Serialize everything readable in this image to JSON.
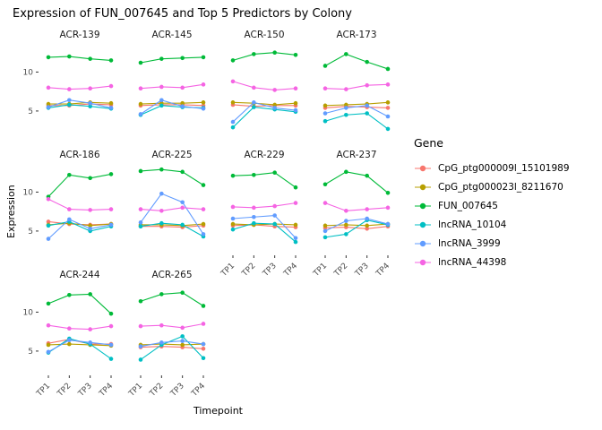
{
  "chart_data": {
    "type": "line",
    "title": "Expression of FUN_007645 and Top 5 Predictors by Colony",
    "xlabel": "Timepoint",
    "ylabel": "Expression",
    "legend_title": "Gene",
    "legend_position": "right",
    "x": [
      "TP1",
      "TP2",
      "TP3",
      "TP4"
    ],
    "ylim": [
      2,
      13.5
    ],
    "yticks": [
      5,
      10
    ],
    "grid": "off",
    "genes": [
      {
        "name": "CpG_ptg000009l_15101989",
        "color": "#F8766D"
      },
      {
        "name": "CpG_ptg000023l_8211670",
        "color": "#B79F00"
      },
      {
        "name": "FUN_007645",
        "color": "#00BA38"
      },
      {
        "name": "lncRNA_10104",
        "color": "#00BFC4"
      },
      {
        "name": "lncRNA_3999",
        "color": "#619CFF"
      },
      {
        "name": "lncRNA_44398",
        "color": "#F564E3"
      }
    ],
    "facets": [
      {
        "colony": "ACR-139",
        "values": [
          [
            5.7,
            5.7,
            5.9,
            5.8
          ],
          [
            5.9,
            5.9,
            6.1,
            6.0
          ],
          [
            11.9,
            12.0,
            11.7,
            11.5
          ],
          [
            5.4,
            5.8,
            5.6,
            5.3
          ],
          [
            5.5,
            6.4,
            6.0,
            5.4
          ],
          [
            8.0,
            7.8,
            7.9,
            8.2
          ]
        ]
      },
      {
        "colony": "ACR-145",
        "values": [
          [
            5.7,
            5.8,
            5.8,
            5.7
          ],
          [
            5.9,
            6.0,
            6.0,
            6.1
          ],
          [
            11.2,
            11.7,
            11.8,
            11.9
          ],
          [
            4.5,
            5.7,
            5.5,
            5.4
          ],
          [
            4.6,
            6.4,
            5.6,
            5.3
          ],
          [
            7.9,
            8.1,
            8.0,
            8.4
          ]
        ]
      },
      {
        "colony": "ACR-150",
        "values": [
          [
            5.8,
            5.6,
            5.7,
            5.7
          ],
          [
            6.1,
            6.0,
            5.8,
            6.0
          ],
          [
            11.5,
            12.3,
            12.5,
            12.2
          ],
          [
            2.9,
            5.5,
            5.2,
            4.9
          ],
          [
            3.6,
            6.1,
            5.4,
            5.1
          ],
          [
            8.8,
            8.0,
            7.7,
            7.9
          ]
        ]
      },
      {
        "colony": "ACR-173",
        "values": [
          [
            5.4,
            5.6,
            5.5,
            5.4
          ],
          [
            5.7,
            5.8,
            5.9,
            6.1
          ],
          [
            10.8,
            12.3,
            11.3,
            10.4
          ],
          [
            3.7,
            4.5,
            4.7,
            2.7
          ],
          [
            4.7,
            5.4,
            5.7,
            4.3
          ],
          [
            7.9,
            7.8,
            8.3,
            8.4
          ]
        ]
      },
      {
        "colony": "ACR-186",
        "values": [
          [
            6.2,
            5.9,
            5.8,
            5.9
          ],
          [
            5.8,
            6.0,
            5.7,
            5.9
          ],
          [
            9.4,
            12.2,
            11.8,
            12.3
          ],
          [
            5.7,
            6.2,
            5.0,
            5.6
          ],
          [
            4.0,
            6.5,
            5.3,
            5.8
          ],
          [
            9.1,
            7.8,
            7.7,
            7.8
          ]
        ]
      },
      {
        "colony": "ACR-225",
        "values": [
          [
            5.6,
            5.6,
            5.5,
            5.7
          ],
          [
            5.8,
            5.8,
            5.7,
            5.9
          ],
          [
            12.7,
            12.9,
            12.6,
            10.9
          ],
          [
            5.6,
            6.0,
            5.8,
            4.3
          ],
          [
            6.1,
            9.8,
            8.7,
            4.6
          ],
          [
            7.8,
            7.6,
            8.0,
            7.8
          ]
        ]
      },
      {
        "colony": "ACR-229",
        "values": [
          [
            5.7,
            5.8,
            5.6,
            5.5
          ],
          [
            5.9,
            5.8,
            5.9,
            5.8
          ],
          [
            12.1,
            12.2,
            12.5,
            10.6
          ],
          [
            5.2,
            6.0,
            5.9,
            3.6
          ],
          [
            6.6,
            6.8,
            7.0,
            4.1
          ],
          [
            8.1,
            8.0,
            8.2,
            8.6
          ]
        ]
      },
      {
        "colony": "ACR-237",
        "values": [
          [
            5.4,
            5.5,
            5.3,
            5.6
          ],
          [
            5.7,
            5.8,
            5.7,
            5.9
          ],
          [
            11.0,
            12.6,
            12.1,
            9.9
          ],
          [
            4.2,
            4.6,
            6.4,
            5.8
          ],
          [
            5.0,
            6.3,
            6.6,
            5.9
          ],
          [
            8.6,
            7.6,
            7.8,
            8.0
          ]
        ]
      },
      {
        "colony": "ACR-244",
        "values": [
          [
            6.0,
            6.5,
            5.9,
            5.9
          ],
          [
            5.8,
            5.9,
            5.8,
            5.7
          ],
          [
            11.1,
            12.2,
            12.3,
            9.8
          ],
          [
            4.8,
            6.6,
            5.9,
            4.0
          ],
          [
            4.9,
            6.4,
            6.1,
            5.8
          ],
          [
            8.3,
            7.9,
            7.8,
            8.2
          ]
        ]
      },
      {
        "colony": "ACR-265",
        "values": [
          [
            5.5,
            5.6,
            5.5,
            5.3
          ],
          [
            5.8,
            5.9,
            5.8,
            5.9
          ],
          [
            11.4,
            12.3,
            12.5,
            10.8
          ],
          [
            3.9,
            5.8,
            6.9,
            4.1
          ],
          [
            5.6,
            6.1,
            6.3,
            5.9
          ],
          [
            8.2,
            8.3,
            8.0,
            8.5
          ]
        ]
      }
    ]
  }
}
